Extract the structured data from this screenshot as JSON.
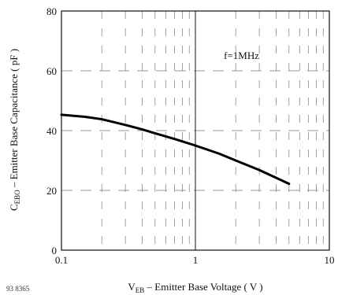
{
  "chart_data": {
    "type": "line",
    "xscale": "log",
    "xlim": [
      0.1,
      10
    ],
    "ylim": [
      0,
      80
    ],
    "x_ticks": [
      {
        "value": 0.1,
        "label": "0.1"
      },
      {
        "value": 1,
        "label": "1"
      },
      {
        "value": 10,
        "label": "10"
      }
    ],
    "y_ticks": [
      {
        "value": 0,
        "label": "0"
      },
      {
        "value": 20,
        "label": "20"
      },
      {
        "value": 40,
        "label": "40"
      },
      {
        "value": 60,
        "label": "60"
      },
      {
        "value": 80,
        "label": "80"
      }
    ],
    "xlabel": {
      "prefix": "V",
      "sub": "EB",
      "rest": " – Emitter Base Voltage ( V )"
    },
    "ylabel": {
      "prefix": "C",
      "sub": "EBO",
      "rest": " – Emitter Base Capacitance ( pF )"
    },
    "annotation": "f=1MHz",
    "figure_id": "93 8365",
    "grid": true,
    "series": [
      {
        "x": [
          0.1,
          0.15,
          0.2,
          0.3,
          0.4,
          0.5,
          0.7,
          1.0,
          1.5,
          2.0,
          3.0,
          5.0
        ],
        "values": [
          45.3,
          44.6,
          43.8,
          41.9,
          40.4,
          39.1,
          37.2,
          35.0,
          32.3,
          30.0,
          26.8,
          22.2
        ]
      }
    ]
  }
}
